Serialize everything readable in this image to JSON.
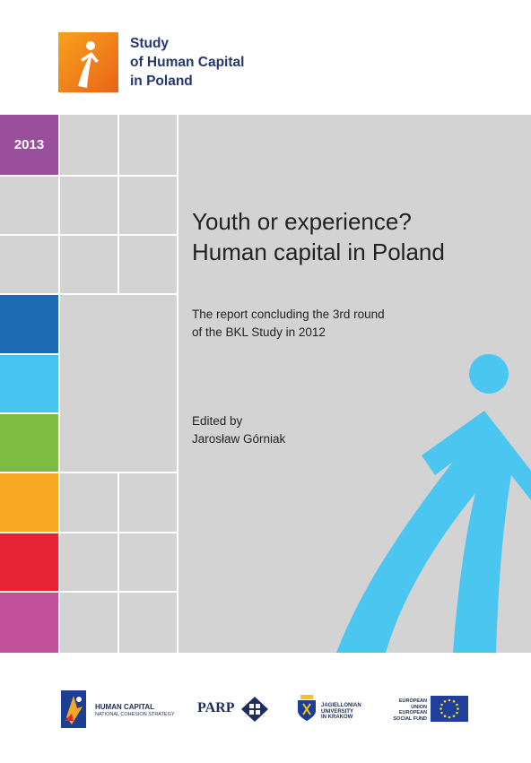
{
  "header": {
    "brand_line1": "Study",
    "brand_line2": "of Human Capital",
    "brand_line3": "in Poland",
    "accent_color": "#f39419",
    "brand_color": "#22386f"
  },
  "cover": {
    "year": "2013",
    "title_line1": "Youth or experience?",
    "title_line2": "Human capital in Poland",
    "subtitle_line1": "The report concluding the 3rd round",
    "subtitle_line2": "of the BKL Study in 2012",
    "edited_by": "Edited by",
    "editor": "Jarosław Górniak",
    "figure_color": "#4bc6f0",
    "swatch_colors": [
      "#1d6bb2",
      "#46c4ef",
      "#7dbb42",
      "#f7a823",
      "#e52332",
      "#c2519c"
    ]
  },
  "footer": {
    "logo1_line1": "HUMAN CAPITAL",
    "logo1_line2": "NATIONAL COHESION STRATEGY",
    "logo2": "PARP",
    "logo3_line1": "JAGIELLONIAN",
    "logo3_line2": "UNIVERSITY",
    "logo3_line3": "IN KRAKOW",
    "logo4_line1": "EUROPEAN UNION",
    "logo4_line2": "EUROPEAN",
    "logo4_line3": "SOCIAL FUND"
  }
}
